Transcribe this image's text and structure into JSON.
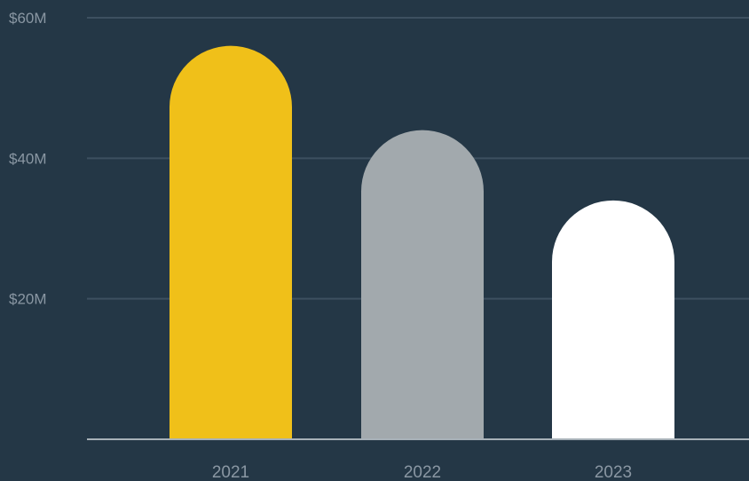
{
  "chart_data": {
    "type": "bar",
    "title": "",
    "xlabel": "",
    "ylabel": "",
    "categories": [
      "2021",
      "2022",
      "2023"
    ],
    "values": [
      56,
      44,
      34
    ],
    "ylim": [
      0,
      60
    ],
    "yticks": [
      {
        "value": 20,
        "label": "$20M"
      },
      {
        "value": 40,
        "label": "$40M"
      },
      {
        "value": 60,
        "label": "$60M"
      }
    ],
    "colors": [
      "#f0c019",
      "#a2a9ad",
      "#ffffff"
    ],
    "background": "#243746",
    "grid": true,
    "bar_shape": "rounded-top"
  }
}
